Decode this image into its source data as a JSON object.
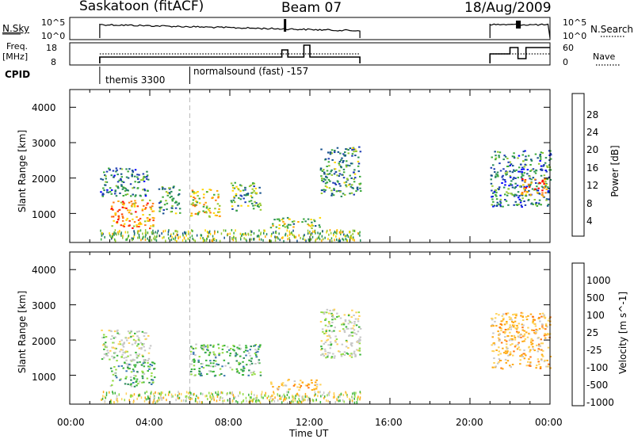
{
  "header": {
    "station": "Saskatoon (fitACF)",
    "beam": "Beam 07",
    "date": "18/Aug/2009"
  },
  "top_panels": {
    "nsky_label": "N.Sky",
    "nsky_ticks": [
      "10^5",
      "10^0"
    ],
    "nsearch_label": "N.Search",
    "freq_label_1": "Freq.",
    "freq_label_2": "[MHz]",
    "freq_ticks": [
      "18",
      "8"
    ],
    "nave_ticks": [
      "60",
      "0"
    ],
    "nave_label": "Nave",
    "cpid_label": "CPID",
    "cpid_segments": [
      "themis 3300",
      "normalsound (fast) -157"
    ]
  },
  "chart_data": [
    {
      "type": "heatmap",
      "name": "power",
      "ylabel": "Slant Range [km]",
      "xlabel": "Time UT",
      "x_ticks": [
        "00:00",
        "04:00",
        "08:00",
        "12:00",
        "16:00",
        "20:00",
        "00:00"
      ],
      "xlim_hours": [
        0,
        24
      ],
      "y_ticks": [
        1000,
        2000,
        3000,
        4000
      ],
      "ylim_km": [
        180,
        4500
      ],
      "colorbar": {
        "label": "Power [dB]",
        "ticks": [
          "28",
          "24",
          "20",
          "16",
          "12",
          "8",
          "4"
        ],
        "range": [
          0,
          30
        ],
        "colors": [
          "#0000ff",
          "#1e3cb4",
          "#14508c",
          "#288c5a",
          "#3caa3c",
          "#96c832",
          "#ffd700",
          "#ffa500",
          "#ff7814",
          "#ff3c00",
          "#ff0000"
        ]
      },
      "echo_regions": [
        {
          "t0": 1.5,
          "t1": 3.9,
          "r0": 1500,
          "r1": 2300,
          "level": 9
        },
        {
          "t0": 2.0,
          "t1": 4.2,
          "r0": 600,
          "r1": 1400,
          "level": 22
        },
        {
          "t0": 4.4,
          "t1": 5.5,
          "r0": 1000,
          "r1": 1800,
          "level": 10
        },
        {
          "t0": 6.0,
          "t1": 7.5,
          "r0": 900,
          "r1": 1700,
          "level": 18
        },
        {
          "t0": 8.0,
          "t1": 9.5,
          "r0": 1100,
          "r1": 1900,
          "level": 11
        },
        {
          "t0": 10.0,
          "t1": 12.5,
          "r0": 600,
          "r1": 900,
          "level": 15
        },
        {
          "t0": 12.5,
          "t1": 14.5,
          "r0": 1500,
          "r1": 2900,
          "level": 10
        },
        {
          "t0": 21.0,
          "t1": 24.0,
          "r0": 1200,
          "r1": 2800,
          "level": 8
        },
        {
          "t0": 22.5,
          "t1": 23.8,
          "r0": 1500,
          "r1": 2000,
          "level": 24
        }
      ]
    },
    {
      "type": "heatmap",
      "name": "velocity",
      "ylabel": "Slant Range [km]",
      "xlabel": "Time UT",
      "x_ticks": [
        "00:00",
        "04:00",
        "08:00",
        "12:00",
        "16:00",
        "20:00",
        "00:00"
      ],
      "xlim_hours": [
        0,
        24
      ],
      "y_ticks": [
        1000,
        2000,
        3000,
        4000
      ],
      "ylim_km": [
        180,
        4500
      ],
      "colorbar": {
        "label": "Velocity [m s^-1]",
        "ticks": [
          "1000",
          "500",
          "100",
          "25",
          "-25",
          "-100",
          "-500",
          "-1000"
        ],
        "colors": [
          "#1e3cb4",
          "#3c78b4",
          "#2d8c5a",
          "#3cb43c",
          "#96dc46",
          "#c8c8c8",
          "#ffd25a",
          "#ffaa14",
          "#ff7814",
          "#ff3c00",
          "#ff0000"
        ]
      },
      "echo_regions": [
        {
          "t0": 1.5,
          "t1": 4.0,
          "r0": 1400,
          "r1": 2300,
          "class": "ground"
        },
        {
          "t0": 2.0,
          "t1": 4.2,
          "r0": 700,
          "r1": 1400,
          "class": "positive"
        },
        {
          "t0": 6.0,
          "t1": 9.5,
          "r0": 1000,
          "r1": 1900,
          "class": "positive"
        },
        {
          "t0": 10.0,
          "t1": 12.5,
          "r0": 600,
          "r1": 900,
          "class": "negative"
        },
        {
          "t0": 12.5,
          "t1": 14.5,
          "r0": 1500,
          "r1": 2900,
          "class": "ground"
        },
        {
          "t0": 21.0,
          "t1": 24.0,
          "r0": 1200,
          "r1": 2800,
          "class": "negative"
        }
      ]
    }
  ]
}
